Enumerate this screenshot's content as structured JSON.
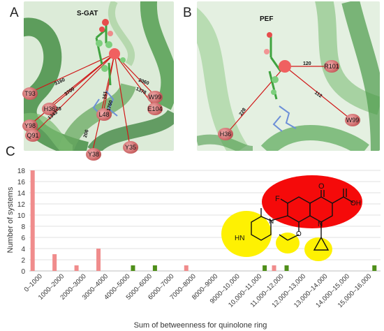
{
  "panels": {
    "a": {
      "letter": "A",
      "label": "S-GAT",
      "residues": [
        "T93",
        "H36",
        "Y98",
        "Q91",
        "Y38",
        "L48",
        "Y35",
        "W99",
        "E104"
      ],
      "edge_labels": [
        "3160",
        "3700",
        "25",
        "1343",
        "206",
        "161",
        "1760",
        "2060",
        "1378"
      ]
    },
    "b": {
      "letter": "B",
      "label": "PEF",
      "residues": [
        "R101",
        "H36",
        "W99"
      ],
      "edge_labels": [
        "120",
        "228",
        "112"
      ]
    },
    "c": {
      "letter": "C"
    }
  },
  "molecule": {
    "atoms": [
      "O",
      "OH",
      "F",
      "N",
      "N",
      "HN",
      "O"
    ]
  },
  "chart_data": {
    "type": "bar",
    "xlabel": "Sum of betweenness for quinolone ring",
    "ylabel": "Number of systems",
    "ylim": [
      0,
      18
    ],
    "yticks": [
      0,
      2,
      4,
      6,
      8,
      10,
      12,
      14,
      16,
      18
    ],
    "grid": true,
    "categories": [
      "0–1000",
      "1000–2000",
      "2000–3000",
      "3000–4000",
      "4000–5000",
      "5000–6000",
      "6000–7000",
      "7000–8000",
      "8000–9000",
      "9000–10,000",
      "10,000–11,000",
      "11,000–12,000",
      "12,000–13,000",
      "13,000–14,000",
      "14,000–15,000",
      "15,000–16,000"
    ],
    "series": [
      {
        "color": "#f08c8c",
        "values": [
          18,
          3,
          1,
          4,
          0,
          0,
          0,
          1,
          0,
          0,
          0,
          1,
          0,
          0,
          0,
          0
        ]
      },
      {
        "color": "#4f8f1a",
        "values": [
          0,
          0,
          0,
          0,
          1,
          1,
          0,
          0,
          0,
          0,
          1,
          1,
          0,
          0,
          0,
          1
        ]
      }
    ]
  }
}
